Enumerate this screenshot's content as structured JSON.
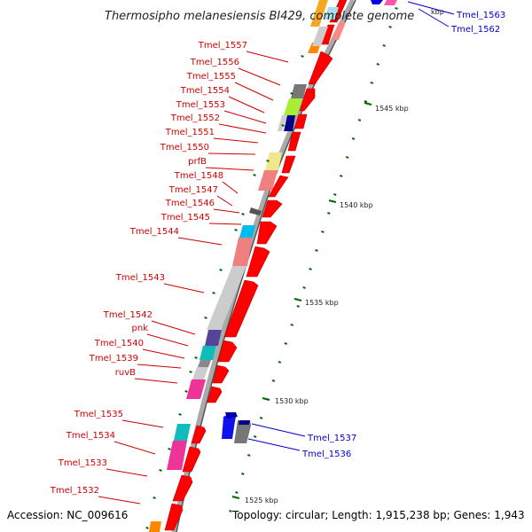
{
  "title": "Thermosipho melanesiensis BI429, complete genome",
  "footer": {
    "accession": "Accession: NC_009616",
    "topology": "Topology: circular; Length: 1,915,238 bp; Genes: 1,943"
  },
  "colors": {
    "cds": "#ff0000",
    "backbone": "#999999",
    "label_left": "#cc0000",
    "label_right": "#0000cc",
    "tick": "#006600"
  },
  "kbp_marks": [
    "1525 kbp",
    "1530 kbp",
    "1535 kbp",
    "1540 kbp",
    "1545 kbp",
    "kbp"
  ],
  "left_labels": [
    "Tmel_1557",
    "Tmel_1556",
    "Tmel_1555",
    "Tmel_1554",
    "Tmel_1553",
    "Tmel_1552",
    "Tmel_1551",
    "Tmel_1550",
    "prfB",
    "Tmel_1548",
    "Tmel_1547",
    "Tmel_1546",
    "Tmel_1545",
    "Tmel_1544",
    "Tmel_1543",
    "Tmel_1542",
    "pnk",
    "Tmel_1540",
    "Tmel_1539",
    "ruvB",
    "Tmel_1535",
    "Tmel_1534",
    "Tmel_1533",
    "Tmel_1532"
  ],
  "right_labels": [
    "Tmel_1563",
    "Tmel_1562",
    "Tmel_1537",
    "Tmel_1536"
  ]
}
